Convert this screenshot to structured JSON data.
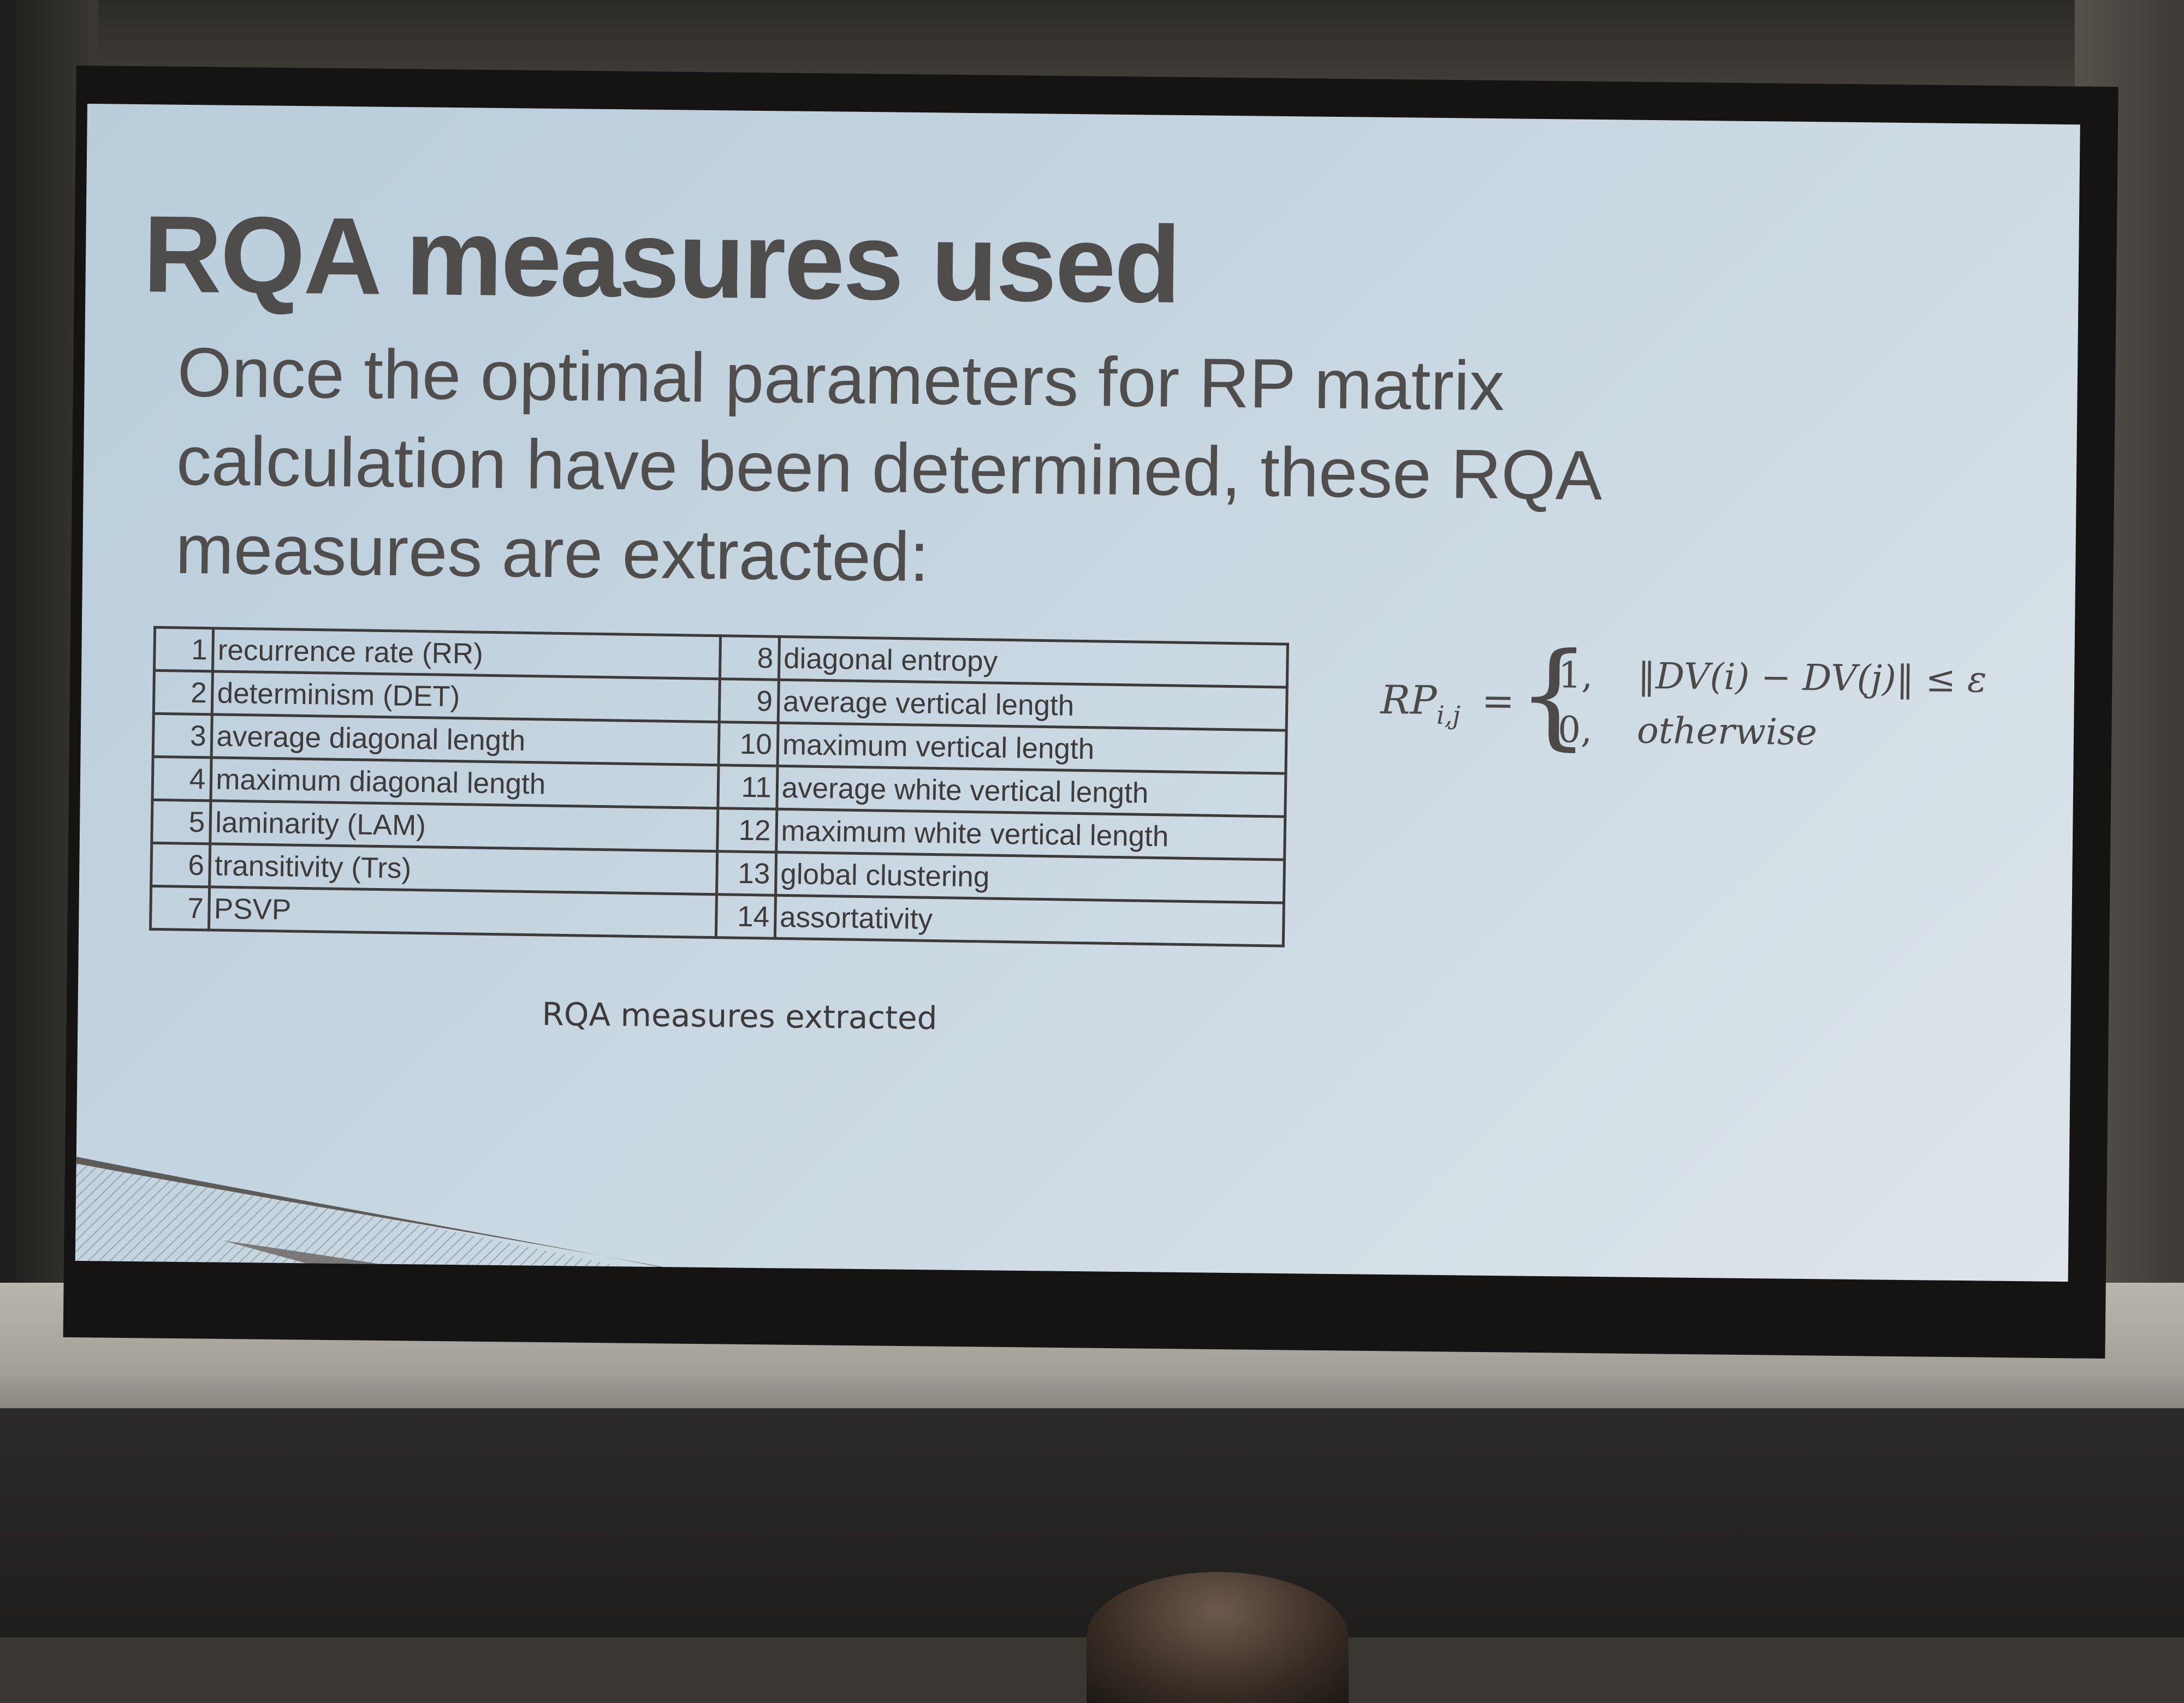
{
  "slide": {
    "title": "RQA measures used",
    "body": "Once the optimal parameters for RP matrix calculation have been determined, these RQA measures are extracted:",
    "table": {
      "rows": [
        {
          "n1": "1",
          "m1": "recurrence rate (RR)",
          "n2": "8",
          "m2": "diagonal entropy"
        },
        {
          "n1": "2",
          "m1": "determinism (DET)",
          "n2": "9",
          "m2": "average vertical length"
        },
        {
          "n1": "3",
          "m1": "average diagonal length",
          "n2": "10",
          "m2": "maximum vertical length"
        },
        {
          "n1": "4",
          "m1": "maximum diagonal length",
          "n2": "11",
          "m2": "average white vertical length"
        },
        {
          "n1": "5",
          "m1": "laminarity (LAM)",
          "n2": "12",
          "m2": "maximum white vertical length"
        },
        {
          "n1": "6",
          "m1": "transitivity (Trs)",
          "n2": "13",
          "m2": "global clustering"
        },
        {
          "n1": "7",
          "m1": "PSVP",
          "n2": "14",
          "m2": "assortativity"
        }
      ],
      "caption": "RQA measures extracted"
    },
    "formula": {
      "lhs": "RP",
      "lhs_sub": "i,j",
      "equals": "=",
      "brace": "{",
      "case1_value": "1,",
      "case1_condition": "‖DV(i) − DV(j)‖ ≤ ε",
      "case2_value": "0,",
      "case2_condition": "otherwise"
    }
  },
  "colors": {
    "slide_background": "#c5d5e0",
    "text": "#4e4d4b",
    "room": "#3a3733"
  }
}
